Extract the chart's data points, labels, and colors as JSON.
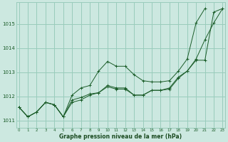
{
  "title": "Graphe pression niveau de la mer (hPa)",
  "background_color": "#cce8e0",
  "grid_color": "#99ccbb",
  "line_color": "#1a5c28",
  "xlabel_color": "#1a4a20",
  "ylim": [
    1010.7,
    1015.9
  ],
  "xlim": [
    -0.3,
    23.3
  ],
  "yticks": [
    1011,
    1012,
    1013,
    1014,
    1015
  ],
  "xticks": [
    0,
    1,
    2,
    3,
    4,
    5,
    6,
    7,
    8,
    9,
    10,
    11,
    12,
    13,
    14,
    15,
    16,
    17,
    18,
    19,
    20,
    21,
    22,
    23
  ],
  "series": [
    {
      "x": [
        0,
        1,
        2,
        3,
        4,
        5,
        6,
        7,
        8,
        9,
        10,
        11,
        12,
        13,
        14,
        15,
        16,
        17,
        18,
        19,
        20,
        21,
        22,
        23
      ],
      "y": [
        1011.55,
        1011.15,
        1011.35,
        1011.75,
        1011.65,
        1011.15,
        1011.75,
        1011.85,
        1012.05,
        1012.15,
        1012.45,
        1012.35,
        1012.35,
        1012.05,
        1012.05,
        1012.25,
        1012.25,
        1012.35,
        1012.8,
        1013.05,
        1013.55,
        1014.35,
        1015.05,
        1015.65
      ]
    },
    {
      "x": [
        0,
        1,
        2,
        3,
        4,
        5,
        6,
        7,
        8,
        9,
        10,
        11,
        12,
        13,
        14,
        15,
        16,
        17,
        18,
        19,
        20,
        21
      ],
      "y": [
        1011.55,
        1011.15,
        1011.35,
        1011.75,
        1011.65,
        1011.15,
        1012.05,
        1012.35,
        1012.45,
        1013.05,
        1013.45,
        1013.25,
        1013.25,
        1012.9,
        1012.65,
        1012.6,
        1012.6,
        1012.65,
        1013.05,
        1013.55,
        1015.05,
        1015.65
      ]
    },
    {
      "x": [
        0,
        1,
        2,
        3,
        4,
        5,
        6,
        7,
        8,
        9,
        10,
        11,
        12,
        13,
        14,
        15,
        16,
        17,
        18,
        19,
        20,
        21,
        22,
        23
      ],
      "y": [
        1011.55,
        1011.15,
        1011.35,
        1011.75,
        1011.65,
        1011.15,
        1011.85,
        1011.95,
        1012.1,
        1012.15,
        1012.4,
        1012.3,
        1012.3,
        1012.05,
        1012.05,
        1012.25,
        1012.25,
        1012.3,
        1012.75,
        1013.05,
        1013.5,
        1013.5,
        1015.5,
        1015.65
      ]
    }
  ]
}
